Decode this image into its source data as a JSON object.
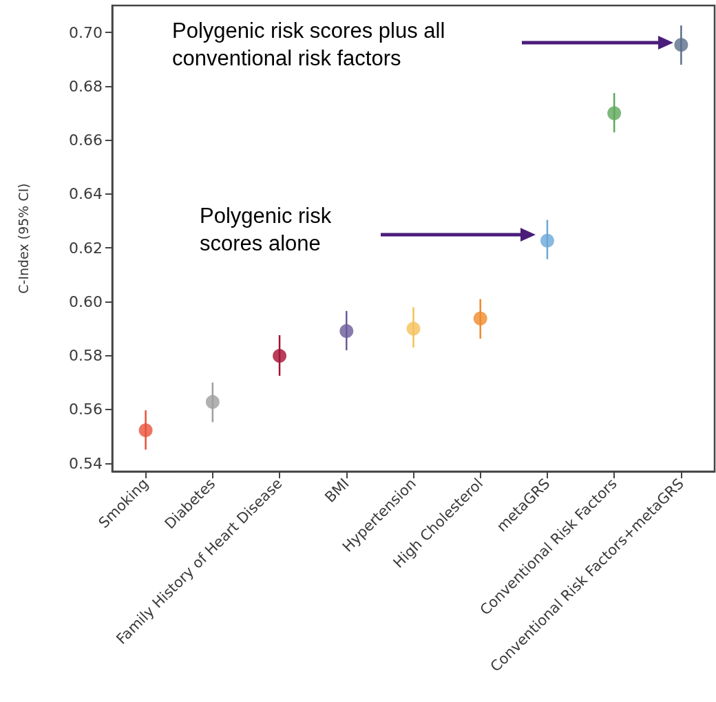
{
  "chart_data": {
    "type": "scatter",
    "ylabel": "C-Index (95% CI)",
    "categories": [
      "Smoking",
      "Diabetes",
      "Family History of Heart Disease",
      "BMI",
      "Hypertension",
      "High Cholesterol",
      "metaGRS",
      "Conventional Risk Factors",
      "Conventional Risk Factors+metaGRS"
    ],
    "values": [
      0.5523,
      0.5628,
      0.5799,
      0.5891,
      0.59,
      0.5938,
      0.6227,
      0.67,
      0.6954
    ],
    "errors": [
      [
        0.5451,
        0.5597
      ],
      [
        0.5553,
        0.57
      ],
      [
        0.5725,
        0.5876
      ],
      [
        0.582,
        0.5966
      ],
      [
        0.583,
        0.598
      ],
      [
        0.5863,
        0.601
      ],
      [
        0.6158,
        0.6304
      ],
      [
        0.6629,
        0.6775
      ],
      [
        0.688,
        0.7026
      ]
    ],
    "colors": [
      "#e8513a",
      "#9e9e9e",
      "#a50f33",
      "#6a5a9a",
      "#f5c15a",
      "#f08a2c",
      "#6aa7d8",
      "#5ea85a",
      "#5b6e8a"
    ],
    "ylim": [
      0.537,
      0.71
    ],
    "yticks": [
      {
        "value": 0.54,
        "label": "0.54"
      },
      {
        "value": 0.56,
        "label": "0.56"
      },
      {
        "value": 0.58,
        "label": "0.58"
      },
      {
        "value": 0.6,
        "label": "0.60"
      },
      {
        "value": 0.62,
        "label": "0.62"
      },
      {
        "value": 0.64,
        "label": "0.64"
      },
      {
        "value": 0.66,
        "label": "0.66"
      },
      {
        "value": 0.68,
        "label": "0.68"
      },
      {
        "value": 0.7,
        "label": "0.70"
      }
    ],
    "grid": false,
    "marker": "circle",
    "annotations": [
      "Polygenic risk scores plus all conventional risk factors",
      "Polygenic risk scores alone"
    ]
  }
}
